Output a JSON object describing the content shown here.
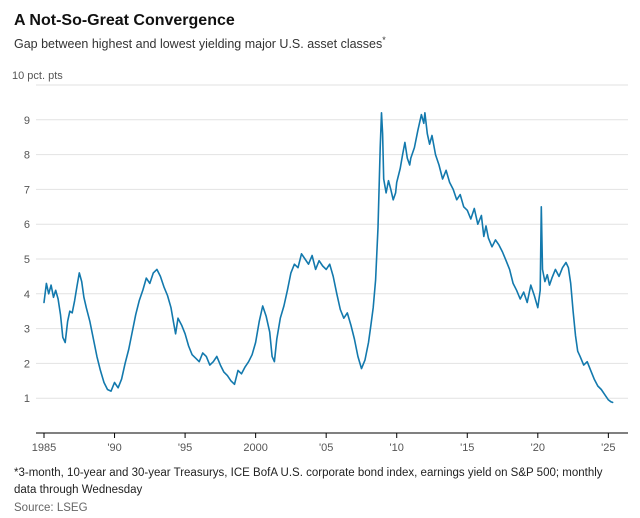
{
  "header": {
    "title": "A Not-So-Great Convergence",
    "subtitle": "Gap between highest and lowest yielding major U.S. asset classes",
    "subtitle_marker": "*"
  },
  "footnotes": {
    "note": "*3-month, 10-year and 30-year Treasurys, ICE BofA U.S. corporate bond index, earnings yield on S&P 500; monthly data through Wednesday",
    "source": "Source: LSEG"
  },
  "chart_data": {
    "type": "line",
    "title": "A Not-So-Great Convergence",
    "subtitle": "Gap between highest and lowest yielding major U.S. asset classes",
    "unit_label": "10 pct. pts",
    "line_color": "#1379ad",
    "grid_color": "#e2e2e2",
    "axis_color": "#000000",
    "legend": "none",
    "grid": "horizontal",
    "xlim": [
      1985,
      2025.4
    ],
    "ylim": [
      0,
      10
    ],
    "yticks": [
      1,
      2,
      3,
      4,
      5,
      6,
      7,
      8,
      9
    ],
    "top_gridline_value": 10,
    "xticks": [
      {
        "value": 1985,
        "label": "1985"
      },
      {
        "value": 1990,
        "label": "'90"
      },
      {
        "value": 1995,
        "label": "'95"
      },
      {
        "value": 2000,
        "label": "2000"
      },
      {
        "value": 2005,
        "label": "'05"
      },
      {
        "value": 2010,
        "label": "'10"
      },
      {
        "value": 2015,
        "label": "'15"
      },
      {
        "value": 2020,
        "label": "'20"
      },
      {
        "value": 2025,
        "label": "'25"
      }
    ],
    "points": [
      [
        1985.0,
        3.75
      ],
      [
        1985.17,
        4.3
      ],
      [
        1985.33,
        4.0
      ],
      [
        1985.5,
        4.25
      ],
      [
        1985.67,
        3.9
      ],
      [
        1985.83,
        4.1
      ],
      [
        1986.0,
        3.85
      ],
      [
        1986.17,
        3.4
      ],
      [
        1986.33,
        2.75
      ],
      [
        1986.5,
        2.6
      ],
      [
        1986.67,
        3.2
      ],
      [
        1986.83,
        3.5
      ],
      [
        1987.0,
        3.45
      ],
      [
        1987.17,
        3.8
      ],
      [
        1987.33,
        4.2
      ],
      [
        1987.5,
        4.6
      ],
      [
        1987.67,
        4.35
      ],
      [
        1987.83,
        3.9
      ],
      [
        1988.0,
        3.6
      ],
      [
        1988.25,
        3.2
      ],
      [
        1988.5,
        2.7
      ],
      [
        1988.75,
        2.2
      ],
      [
        1989.0,
        1.8
      ],
      [
        1989.25,
        1.45
      ],
      [
        1989.5,
        1.25
      ],
      [
        1989.75,
        1.2
      ],
      [
        1990.0,
        1.45
      ],
      [
        1990.25,
        1.3
      ],
      [
        1990.5,
        1.55
      ],
      [
        1990.75,
        2.0
      ],
      [
        1991.0,
        2.4
      ],
      [
        1991.25,
        2.9
      ],
      [
        1991.5,
        3.4
      ],
      [
        1991.75,
        3.8
      ],
      [
        1992.0,
        4.1
      ],
      [
        1992.25,
        4.45
      ],
      [
        1992.5,
        4.3
      ],
      [
        1992.75,
        4.6
      ],
      [
        1993.0,
        4.7
      ],
      [
        1993.25,
        4.5
      ],
      [
        1993.5,
        4.2
      ],
      [
        1993.75,
        3.95
      ],
      [
        1994.0,
        3.6
      ],
      [
        1994.17,
        3.2
      ],
      [
        1994.33,
        2.85
      ],
      [
        1994.5,
        3.3
      ],
      [
        1994.75,
        3.1
      ],
      [
        1995.0,
        2.85
      ],
      [
        1995.25,
        2.5
      ],
      [
        1995.5,
        2.25
      ],
      [
        1995.75,
        2.15
      ],
      [
        1996.0,
        2.05
      ],
      [
        1996.25,
        2.3
      ],
      [
        1996.5,
        2.2
      ],
      [
        1996.75,
        1.95
      ],
      [
        1997.0,
        2.05
      ],
      [
        1997.25,
        2.2
      ],
      [
        1997.5,
        1.95
      ],
      [
        1997.75,
        1.75
      ],
      [
        1998.0,
        1.65
      ],
      [
        1998.25,
        1.5
      ],
      [
        1998.5,
        1.4
      ],
      [
        1998.75,
        1.8
      ],
      [
        1999.0,
        1.7
      ],
      [
        1999.25,
        1.9
      ],
      [
        1999.5,
        2.05
      ],
      [
        1999.75,
        2.25
      ],
      [
        2000.0,
        2.6
      ],
      [
        2000.25,
        3.2
      ],
      [
        2000.5,
        3.65
      ],
      [
        2000.75,
        3.35
      ],
      [
        2001.0,
        2.9
      ],
      [
        2001.17,
        2.2
      ],
      [
        2001.33,
        2.05
      ],
      [
        2001.5,
        2.7
      ],
      [
        2001.75,
        3.3
      ],
      [
        2002.0,
        3.65
      ],
      [
        2002.25,
        4.1
      ],
      [
        2002.5,
        4.6
      ],
      [
        2002.75,
        4.85
      ],
      [
        2003.0,
        4.75
      ],
      [
        2003.25,
        5.15
      ],
      [
        2003.5,
        5.0
      ],
      [
        2003.75,
        4.85
      ],
      [
        2004.0,
        5.1
      ],
      [
        2004.25,
        4.7
      ],
      [
        2004.5,
        4.95
      ],
      [
        2004.75,
        4.8
      ],
      [
        2005.0,
        4.7
      ],
      [
        2005.25,
        4.85
      ],
      [
        2005.5,
        4.5
      ],
      [
        2005.75,
        4.0
      ],
      [
        2006.0,
        3.55
      ],
      [
        2006.25,
        3.3
      ],
      [
        2006.5,
        3.45
      ],
      [
        2006.75,
        3.1
      ],
      [
        2007.0,
        2.7
      ],
      [
        2007.25,
        2.2
      ],
      [
        2007.5,
        1.85
      ],
      [
        2007.75,
        2.1
      ],
      [
        2008.0,
        2.6
      ],
      [
        2008.17,
        3.1
      ],
      [
        2008.33,
        3.6
      ],
      [
        2008.5,
        4.4
      ],
      [
        2008.67,
        5.9
      ],
      [
        2008.83,
        8.2
      ],
      [
        2008.92,
        9.2
      ],
      [
        2009.0,
        8.6
      ],
      [
        2009.08,
        7.3
      ],
      [
        2009.25,
        6.9
      ],
      [
        2009.42,
        7.25
      ],
      [
        2009.58,
        7.0
      ],
      [
        2009.75,
        6.7
      ],
      [
        2009.92,
        6.9
      ],
      [
        2010.0,
        7.2
      ],
      [
        2010.25,
        7.6
      ],
      [
        2010.42,
        8.0
      ],
      [
        2010.58,
        8.35
      ],
      [
        2010.75,
        7.9
      ],
      [
        2010.92,
        7.7
      ],
      [
        2011.0,
        7.9
      ],
      [
        2011.25,
        8.2
      ],
      [
        2011.5,
        8.7
      ],
      [
        2011.75,
        9.15
      ],
      [
        2011.92,
        8.9
      ],
      [
        2012.0,
        9.2
      ],
      [
        2012.17,
        8.6
      ],
      [
        2012.33,
        8.3
      ],
      [
        2012.5,
        8.55
      ],
      [
        2012.75,
        8.0
      ],
      [
        2013.0,
        7.7
      ],
      [
        2013.25,
        7.3
      ],
      [
        2013.5,
        7.55
      ],
      [
        2013.75,
        7.2
      ],
      [
        2014.0,
        7.0
      ],
      [
        2014.25,
        6.7
      ],
      [
        2014.5,
        6.85
      ],
      [
        2014.75,
        6.5
      ],
      [
        2015.0,
        6.4
      ],
      [
        2015.25,
        6.15
      ],
      [
        2015.5,
        6.45
      ],
      [
        2015.75,
        6.0
      ],
      [
        2016.0,
        6.25
      ],
      [
        2016.17,
        5.65
      ],
      [
        2016.33,
        5.95
      ],
      [
        2016.5,
        5.6
      ],
      [
        2016.75,
        5.35
      ],
      [
        2017.0,
        5.55
      ],
      [
        2017.25,
        5.4
      ],
      [
        2017.5,
        5.2
      ],
      [
        2017.75,
        4.95
      ],
      [
        2018.0,
        4.7
      ],
      [
        2018.25,
        4.3
      ],
      [
        2018.5,
        4.1
      ],
      [
        2018.75,
        3.85
      ],
      [
        2019.0,
        4.05
      ],
      [
        2019.25,
        3.75
      ],
      [
        2019.5,
        4.25
      ],
      [
        2019.75,
        3.95
      ],
      [
        2020.0,
        3.6
      ],
      [
        2020.17,
        4.1
      ],
      [
        2020.25,
        6.5
      ],
      [
        2020.33,
        4.7
      ],
      [
        2020.5,
        4.35
      ],
      [
        2020.67,
        4.55
      ],
      [
        2020.83,
        4.25
      ],
      [
        2021.0,
        4.45
      ],
      [
        2021.25,
        4.7
      ],
      [
        2021.5,
        4.5
      ],
      [
        2021.75,
        4.75
      ],
      [
        2022.0,
        4.9
      ],
      [
        2022.17,
        4.75
      ],
      [
        2022.33,
        4.3
      ],
      [
        2022.5,
        3.5
      ],
      [
        2022.67,
        2.8
      ],
      [
        2022.83,
        2.35
      ],
      [
        2023.0,
        2.2
      ],
      [
        2023.25,
        1.95
      ],
      [
        2023.5,
        2.05
      ],
      [
        2023.75,
        1.8
      ],
      [
        2024.0,
        1.55
      ],
      [
        2024.25,
        1.35
      ],
      [
        2024.5,
        1.25
      ],
      [
        2024.75,
        1.1
      ],
      [
        2025.0,
        0.95
      ],
      [
        2025.17,
        0.9
      ],
      [
        2025.3,
        0.88
      ]
    ]
  }
}
